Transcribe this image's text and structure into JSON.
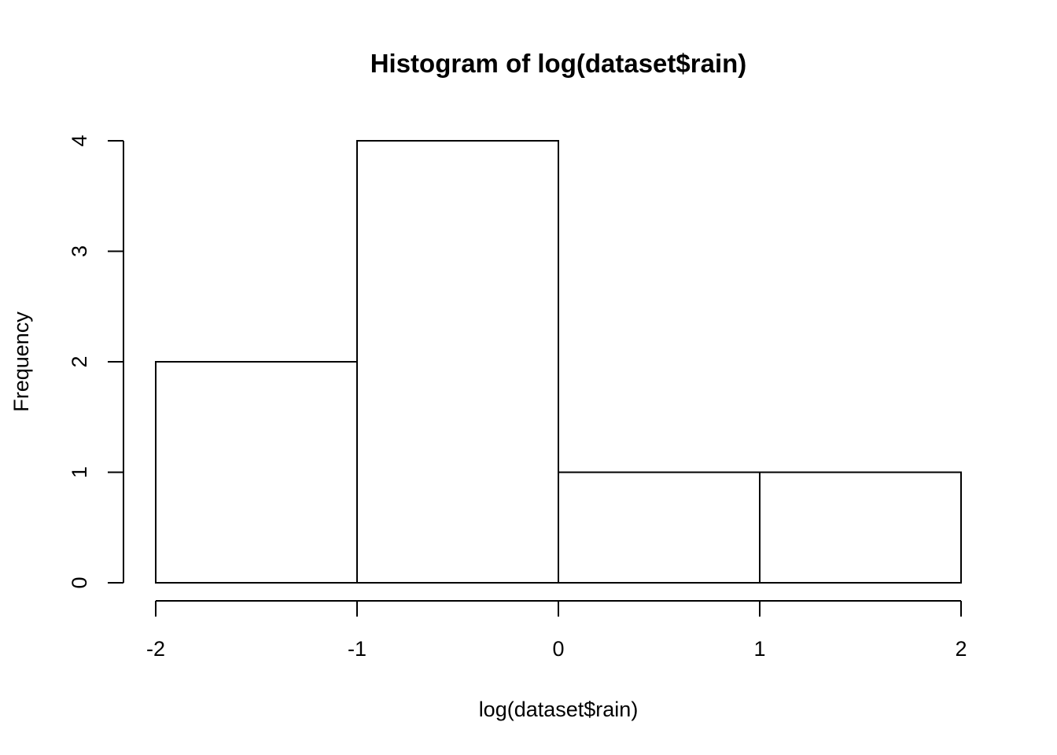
{
  "chart_data": {
    "type": "bar",
    "title": "Histogram of log(dataset$rain)",
    "xlabel": "log(dataset$rain)",
    "ylabel": "Frequency",
    "bins": [
      {
        "from": -2,
        "to": -1,
        "count": 2
      },
      {
        "from": -1,
        "to": 0,
        "count": 4
      },
      {
        "from": 0,
        "to": 1,
        "count": 1
      },
      {
        "from": 1,
        "to": 2,
        "count": 1
      }
    ],
    "xlim": [
      -2,
      2
    ],
    "ylim": [
      0,
      4
    ],
    "x_ticks": [
      -2,
      -1,
      0,
      1,
      2
    ],
    "y_ticks": [
      0,
      1,
      2,
      3,
      4
    ],
    "x_tick_labels": [
      "-2",
      "-1",
      "0",
      "1",
      "2"
    ],
    "y_tick_labels": [
      "0",
      "1",
      "2",
      "3",
      "4"
    ],
    "grid": false,
    "legend": "none",
    "colors": {
      "bar_fill": "#ffffff",
      "bar_stroke": "#000000",
      "text": "#000000"
    }
  }
}
